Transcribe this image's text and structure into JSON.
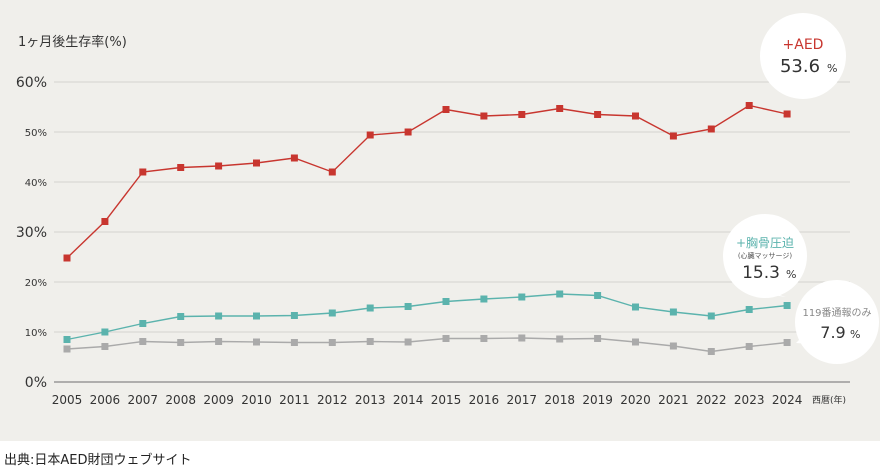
{
  "chart_data": {
    "type": "line",
    "title": "1ヶ月後生存率(%)",
    "xlabel": "西暦(年)",
    "ylabel": "1ヶ月後生存率(%)",
    "ylim": [
      0,
      60
    ],
    "yticks": [
      {
        "value": 0,
        "label": "0%",
        "major": true
      },
      {
        "value": 10,
        "label": "10%",
        "major": false
      },
      {
        "value": 20,
        "label": "20%",
        "major": false
      },
      {
        "value": 30,
        "label": "30%",
        "major": true
      },
      {
        "value": 40,
        "label": "40%",
        "major": false
      },
      {
        "value": 50,
        "label": "50%",
        "major": false
      },
      {
        "value": 60,
        "label": "60%",
        "major": true
      }
    ],
    "categories": [
      "2005",
      "2006",
      "2007",
      "2008",
      "2009",
      "2010",
      "2011",
      "2012",
      "2013",
      "2014",
      "2015",
      "2016",
      "2017",
      "2018",
      "2019",
      "2020",
      "2021",
      "2022",
      "2023",
      "2024"
    ],
    "series": [
      {
        "key": "aed",
        "name": "+AED",
        "color": "#c8362f",
        "values": [
          24.8,
          32.1,
          42.0,
          42.9,
          43.2,
          43.8,
          44.8,
          42.0,
          49.4,
          50.0,
          54.5,
          53.2,
          53.5,
          54.7,
          53.5,
          53.2,
          49.2,
          50.6,
          55.3,
          53.6
        ],
        "callout": {
          "name": "+AED",
          "sub": "",
          "value": "53.6",
          "unit": "%"
        }
      },
      {
        "key": "cpr",
        "name": "+胸骨圧迫",
        "color": "#5bb3ad",
        "values": [
          8.5,
          10.0,
          11.7,
          13.1,
          13.2,
          13.2,
          13.3,
          13.8,
          14.8,
          15.1,
          16.1,
          16.6,
          17.0,
          17.6,
          17.3,
          15.0,
          14.0,
          13.2,
          14.5,
          15.3
        ],
        "callout": {
          "name": "+胸骨圧迫",
          "sub": "(心臓マッサージ)",
          "value": "15.3",
          "unit": "%"
        }
      },
      {
        "key": "call",
        "name": "119番通報のみ",
        "color": "#aaaaaa",
        "values": [
          6.6,
          7.1,
          8.1,
          7.9,
          8.1,
          8.0,
          7.9,
          7.9,
          8.1,
          8.0,
          8.7,
          8.7,
          8.8,
          8.6,
          8.7,
          8.0,
          7.2,
          6.1,
          7.1,
          7.9
        ],
        "callout": {
          "name": "119番通報のみ",
          "sub": "",
          "value": "7.9",
          "unit": "%"
        }
      }
    ]
  },
  "source_note": "出典:日本AED財団ウェブサイト"
}
